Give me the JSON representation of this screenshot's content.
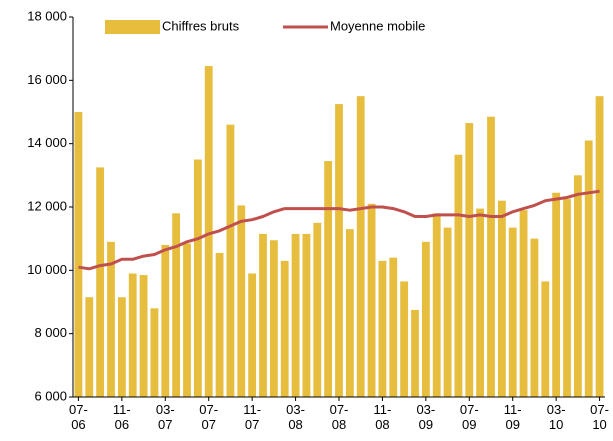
{
  "chart_data": {
    "type": "bar",
    "categories": [
      "07-06",
      null,
      null,
      null,
      "11-06",
      null,
      null,
      null,
      "03-07",
      null,
      null,
      null,
      "07-07",
      null,
      null,
      null,
      "11-07",
      null,
      null,
      null,
      "03-08",
      null,
      null,
      null,
      "07-08",
      null,
      null,
      null,
      "11-08",
      null,
      null,
      null,
      "03-09",
      null,
      null,
      null,
      "07-09",
      null,
      null,
      null,
      "11-09",
      null,
      null,
      null,
      "03-10",
      null,
      null,
      null,
      "07-10"
    ],
    "series": [
      {
        "name": "Chiffres bruts",
        "type": "bar",
        "color": "#e6bd3c",
        "values": [
          15000,
          9150,
          13250,
          10900,
          9150,
          9900,
          9850,
          8800,
          10800,
          11800,
          10850,
          13500,
          16450,
          10550,
          14600,
          12050,
          9900,
          11150,
          10950,
          10300,
          11150,
          11150,
          11500,
          13450,
          15250,
          11300,
          15500,
          12100,
          10300,
          10400,
          9650,
          8750,
          10900,
          11800,
          11350,
          13650,
          14650,
          11950,
          14850,
          12200,
          11350,
          11900,
          11000,
          9650,
          12450,
          12250,
          13000,
          14100,
          15500
        ]
      },
      {
        "name": "Moyenne mobile",
        "type": "line",
        "color": "#c0504d",
        "values": [
          10100,
          10050,
          10150,
          10200,
          10350,
          10350,
          10450,
          10500,
          10650,
          10750,
          10900,
          11000,
          11150,
          11250,
          11400,
          11550,
          11600,
          11700,
          11850,
          11950,
          11950,
          11950,
          11950,
          11950,
          11950,
          11900,
          11950,
          12000,
          12000,
          11950,
          11850,
          11700,
          11700,
          11750,
          11750,
          11750,
          11700,
          11750,
          11700,
          11700,
          11850,
          11950,
          12050,
          12200,
          12250,
          12300,
          12400,
          12450,
          12500
        ]
      }
    ],
    "ylim": [
      6000,
      18000
    ],
    "yticks": [
      {
        "value": 6000,
        "label": "6 000"
      },
      {
        "value": 8000,
        "label": "8 000"
      },
      {
        "value": 10000,
        "label": "10 000"
      },
      {
        "value": 12000,
        "label": "12 000"
      },
      {
        "value": 14000,
        "label": "14 000"
      },
      {
        "value": 16000,
        "label": "16 000"
      },
      {
        "value": 18000,
        "label": "18 000"
      }
    ],
    "grid": false,
    "legend": "top"
  }
}
